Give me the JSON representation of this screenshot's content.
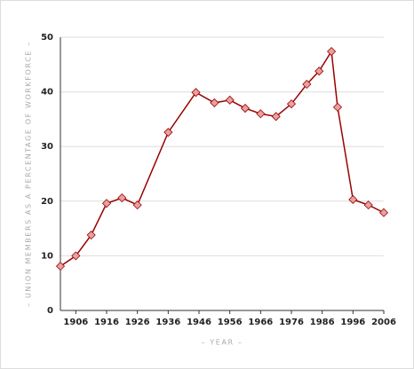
{
  "chart_data": {
    "type": "line",
    "x_label": "– YEAR –",
    "y_label": "– UNION MEMBERS AS A PERCENTAGE OF WORKFORCE –",
    "x": [
      1901,
      1906,
      1911,
      1916,
      1921,
      1926,
      1936,
      1945,
      1951,
      1956,
      1961,
      1966,
      1971,
      1976,
      1981,
      1985,
      1989,
      1991,
      1996,
      2001,
      2006
    ],
    "series": [
      {
        "color": "#990000",
        "marker_color": "#e8a0a0",
        "values": [
          8.1,
          10,
          13.8,
          19.6,
          20.6,
          19.3,
          32.6,
          39.9,
          38.0,
          38.5,
          37.0,
          36.0,
          35.5,
          37.8,
          41.4,
          43.8,
          47.4,
          37.2,
          20.3,
          19.3,
          17.9
        ]
      }
    ],
    "xlim": [
      1901,
      2006
    ],
    "xticks": [
      1906,
      1916,
      1926,
      1936,
      1946,
      1956,
      1966,
      1976,
      1986,
      1996,
      2006
    ],
    "ylim": [
      0,
      50
    ],
    "yticks": [
      0,
      10,
      20,
      30,
      40,
      50
    ],
    "grid": true
  }
}
